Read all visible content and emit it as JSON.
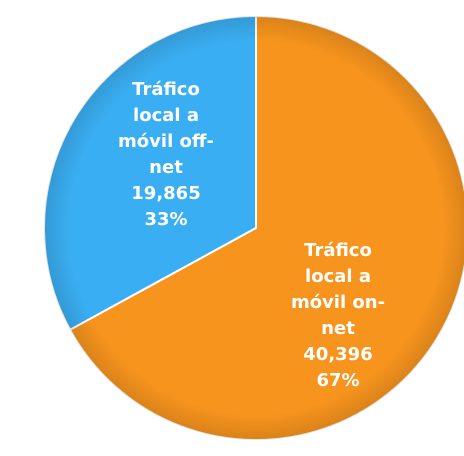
{
  "chart_data": {
    "type": "pie",
    "categories": [
      "Tráfico local a móvil on-net",
      "Tráfico local a móvil off-net"
    ],
    "values": [
      40396,
      19865
    ],
    "value_labels": [
      "40,396",
      "19,865"
    ],
    "percent_labels": [
      "67%",
      "33%"
    ],
    "colors": [
      "#f7941d",
      "#3aaef2"
    ]
  }
}
